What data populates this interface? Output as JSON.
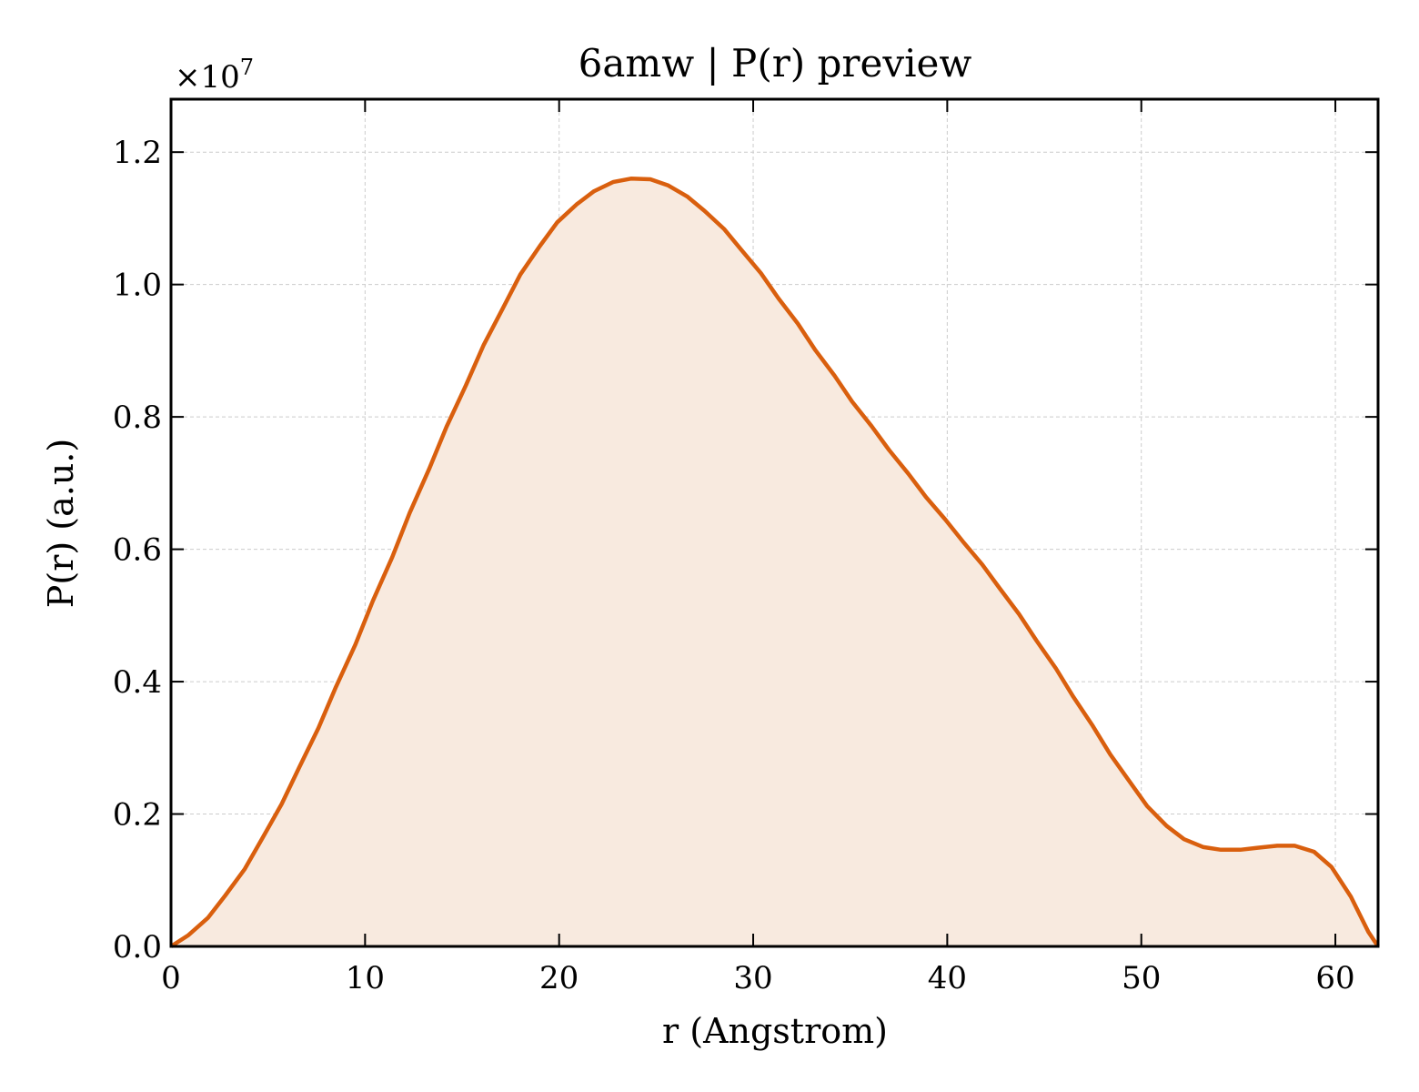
{
  "chart_data": {
    "type": "area",
    "title": "6amw | P(r) preview",
    "xlabel": "r (Angstrom)",
    "ylabel": "P(r) (a.u.)",
    "y_offset_text": "×10",
    "y_offset_exponent": "7",
    "xlim": [
      0,
      62.2
    ],
    "ylim": [
      0,
      1.28
    ],
    "xticks": [
      0,
      10,
      20,
      30,
      40,
      50,
      60
    ],
    "yticks": [
      0.0,
      0.2,
      0.4,
      0.6,
      0.8,
      1.0,
      1.2
    ],
    "xtick_labels": [
      "0",
      "10",
      "20",
      "30",
      "40",
      "50",
      "60"
    ],
    "ytick_labels": [
      "0.0",
      "0.2",
      "0.4",
      "0.6",
      "0.8",
      "1.0",
      "1.2"
    ],
    "grid": true,
    "line_color": "#d95f0e",
    "fill_color": "#f8eadf",
    "series": [
      {
        "x": [
          0,
          0.9,
          1.9,
          2.8,
          3.8,
          4.7,
          5.7,
          6.6,
          7.6,
          8.5,
          9.5,
          10.4,
          11.4,
          12.3,
          13.3,
          14.2,
          15.2,
          16.1,
          17.1,
          18.0,
          19.0,
          19.9,
          20.9,
          21.8,
          22.8,
          23.7,
          24.7,
          25.6,
          26.6,
          27.5,
          28.5,
          29.4,
          30.4,
          31.3,
          32.3,
          33.2,
          34.2,
          35.1,
          36.1,
          37.0,
          38.0,
          38.9,
          39.9,
          40.8,
          41.8,
          42.7,
          43.7,
          44.6,
          45.6,
          46.5,
          47.5,
          48.4,
          49.4,
          50.3,
          51.3,
          52.2,
          53.2,
          54.1,
          55.1,
          56.0,
          57.0,
          57.9,
          58.9,
          59.8,
          60.8,
          61.7,
          62.2
        ],
        "y": [
          0.0,
          0.017,
          0.043,
          0.077,
          0.117,
          0.163,
          0.215,
          0.27,
          0.33,
          0.392,
          0.456,
          0.522,
          0.588,
          0.655,
          0.721,
          0.785,
          0.848,
          0.908,
          0.964,
          1.015,
          1.058,
          1.094,
          1.121,
          1.141,
          1.155,
          1.16,
          1.159,
          1.15,
          1.133,
          1.111,
          1.084,
          1.052,
          1.017,
          0.979,
          0.941,
          0.901,
          0.862,
          0.823,
          0.786,
          0.75,
          0.714,
          0.679,
          0.645,
          0.612,
          0.577,
          0.541,
          0.502,
          0.462,
          0.42,
          0.377,
          0.333,
          0.29,
          0.249,
          0.212,
          0.182,
          0.162,
          0.15,
          0.146,
          0.146,
          0.149,
          0.152,
          0.152,
          0.143,
          0.12,
          0.075,
          0.022,
          0.0
        ]
      }
    ]
  }
}
